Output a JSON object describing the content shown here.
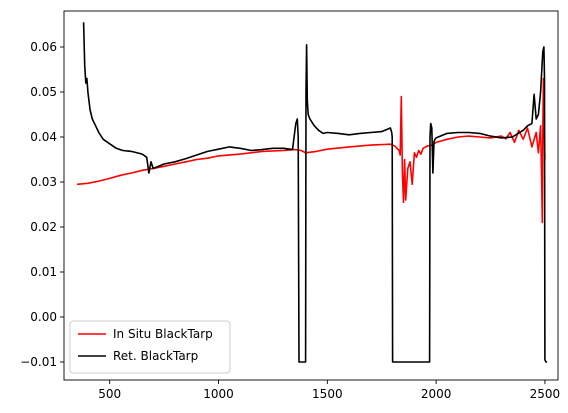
{
  "chart_data": {
    "type": "line",
    "title": "",
    "xlabel": "",
    "ylabel": "",
    "xlim": [
      290,
      2560
    ],
    "ylim": [
      -0.014,
      0.068
    ],
    "xticks": [
      500,
      1000,
      1500,
      2000,
      2500
    ],
    "yticks": [
      -0.01,
      0.0,
      0.01,
      0.02,
      0.03,
      0.04,
      0.05,
      0.06
    ],
    "xtick_labels": [
      "500",
      "1000",
      "1500",
      "2000",
      "2500"
    ],
    "ytick_labels": [
      "−0.01",
      "0.00",
      "0.01",
      "0.02",
      "0.03",
      "0.04",
      "0.05",
      "0.06"
    ],
    "grid": false,
    "legend_position": "lower-left",
    "series": [
      {
        "name": "In Situ BlackTarp",
        "color": "#ff0000",
        "x": [
          350,
          400,
          450,
          500,
          550,
          600,
          650,
          700,
          750,
          800,
          850,
          900,
          950,
          1000,
          1100,
          1200,
          1300,
          1350,
          1380,
          1400,
          1450,
          1500,
          1600,
          1700,
          1790,
          1810,
          1820,
          1830,
          1835,
          1840,
          1845,
          1850,
          1855,
          1860,
          1870,
          1880,
          1890,
          1900,
          1910,
          1920,
          1930,
          1940,
          1960,
          1980,
          2000,
          2050,
          2100,
          2150,
          2200,
          2250,
          2300,
          2320,
          2340,
          2360,
          2380,
          2400,
          2420,
          2440,
          2460,
          2470,
          2480,
          2485,
          2488,
          2490,
          2493,
          2496,
          2500
        ],
        "y": [
          0.0295,
          0.0297,
          0.0302,
          0.0308,
          0.0315,
          0.032,
          0.0326,
          0.033,
          0.0335,
          0.034,
          0.0345,
          0.035,
          0.0353,
          0.0358,
          0.0362,
          0.0368,
          0.037,
          0.0372,
          0.037,
          0.0365,
          0.0368,
          0.0373,
          0.0378,
          0.0382,
          0.0384,
          0.038,
          0.0375,
          0.037,
          0.036,
          0.049,
          0.032,
          0.0255,
          0.035,
          0.026,
          0.033,
          0.0345,
          0.0295,
          0.0365,
          0.0355,
          0.037,
          0.0362,
          0.0375,
          0.038,
          0.0382,
          0.0388,
          0.0395,
          0.04,
          0.0402,
          0.04,
          0.0398,
          0.0402,
          0.0396,
          0.041,
          0.0388,
          0.0415,
          0.0395,
          0.042,
          0.0378,
          0.041,
          0.0365,
          0.0425,
          0.03,
          0.021,
          0.04,
          0.053,
          0.043,
          0.035
        ]
      },
      {
        "name": "Ret. BlackTarp",
        "color": "#000000",
        "x": [
          380,
          385,
          390,
          395,
          400,
          405,
          410,
          420,
          430,
          450,
          470,
          500,
          530,
          560,
          600,
          650,
          670,
          680,
          690,
          700,
          750,
          800,
          850,
          900,
          950,
          1000,
          1050,
          1100,
          1150,
          1200,
          1250,
          1300,
          1340,
          1355,
          1362,
          1366,
          1370,
          1400,
          1402,
          1405,
          1408,
          1412,
          1420,
          1440,
          1460,
          1480,
          1500,
          1550,
          1600,
          1650,
          1700,
          1750,
          1780,
          1790,
          1796,
          1798,
          1800,
          1970,
          1972,
          1975,
          1980,
          1985,
          1990,
          1995,
          2000,
          2050,
          2100,
          2150,
          2200,
          2250,
          2300,
          2350,
          2400,
          2420,
          2440,
          2450,
          2460,
          2470,
          2480,
          2490,
          2495,
          2498,
          2500,
          2505,
          2510
        ],
        "y": [
          0.0655,
          0.056,
          0.052,
          0.053,
          0.05,
          0.048,
          0.046,
          0.044,
          0.043,
          0.041,
          0.0395,
          0.0385,
          0.0375,
          0.037,
          0.0368,
          0.0362,
          0.0355,
          0.032,
          0.0345,
          0.033,
          0.034,
          0.0345,
          0.0352,
          0.036,
          0.0368,
          0.0373,
          0.0378,
          0.0375,
          0.037,
          0.0372,
          0.0375,
          0.0375,
          0.0372,
          0.043,
          0.044,
          0.04,
          -0.01,
          -0.01,
          0.05,
          0.0605,
          0.048,
          0.045,
          0.044,
          0.0425,
          0.0415,
          0.0408,
          0.041,
          0.0408,
          0.0405,
          0.0408,
          0.041,
          0.0412,
          0.0418,
          0.042,
          0.041,
          0.04,
          -0.01,
          -0.01,
          0.04,
          0.043,
          0.042,
          0.032,
          0.039,
          0.0395,
          0.0398,
          0.0408,
          0.041,
          0.041,
          0.0408,
          0.0402,
          0.0398,
          0.04,
          0.0415,
          0.0425,
          0.043,
          0.0495,
          0.044,
          0.045,
          0.05,
          0.059,
          0.06,
          0.053,
          -0.0095,
          -0.01,
          -0.01
        ]
      }
    ]
  }
}
